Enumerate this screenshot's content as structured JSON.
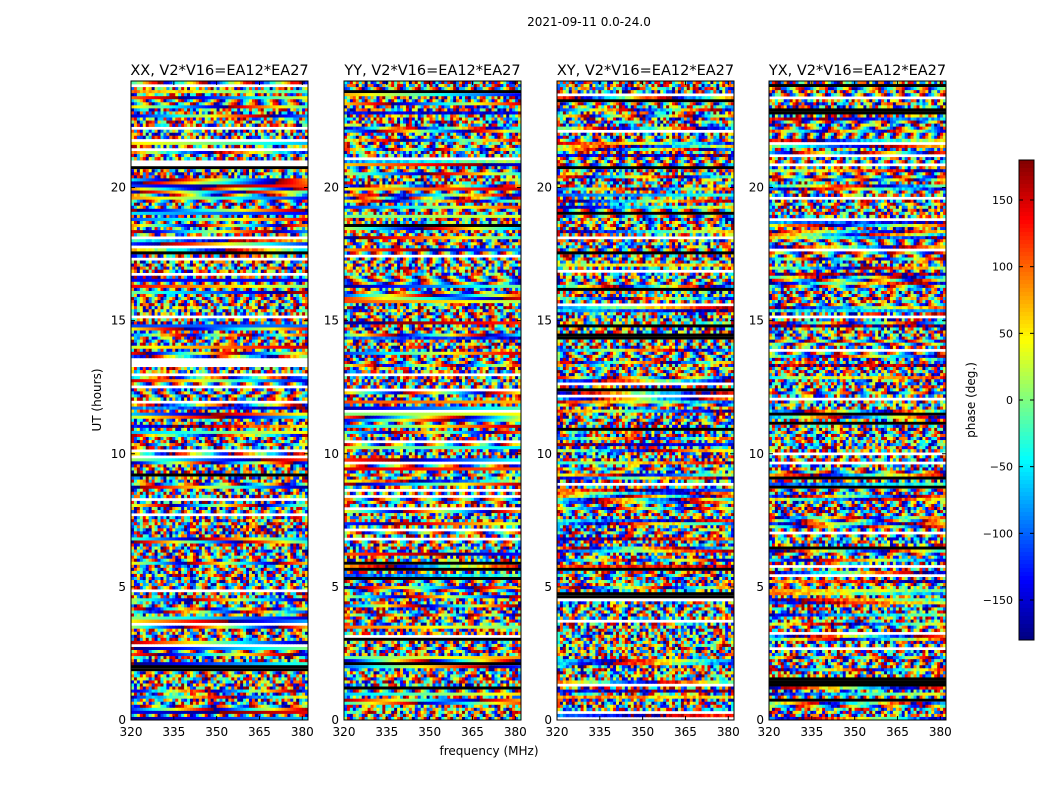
{
  "chart_data": {
    "type": "heatmap",
    "suptitle": "2021-09-11 0.0-24.0",
    "xlabel": "frequency (MHz)",
    "ylabel": "UT (hours)",
    "xlim": [
      320,
      382
    ],
    "ylim": [
      0,
      24
    ],
    "xticks": [
      "320",
      "335",
      "350",
      "365",
      "380"
    ],
    "yticks": [
      "0",
      "5",
      "10",
      "15",
      "20"
    ],
    "panels": [
      {
        "title": "XX, V2*V16=EA12*EA27"
      },
      {
        "title": "YY, V2*V16=EA12*EA27"
      },
      {
        "title": "XY, V2*V16=EA12*EA27"
      },
      {
        "title": "YX, V2*V16=EA12*EA27"
      }
    ],
    "colorbar": {
      "label": "phase (deg.)",
      "range": [
        -180,
        180
      ],
      "ticks": [
        "150",
        "100",
        "50",
        "0",
        "−50",
        "−100",
        "−150"
      ],
      "colormap": "jet"
    }
  }
}
